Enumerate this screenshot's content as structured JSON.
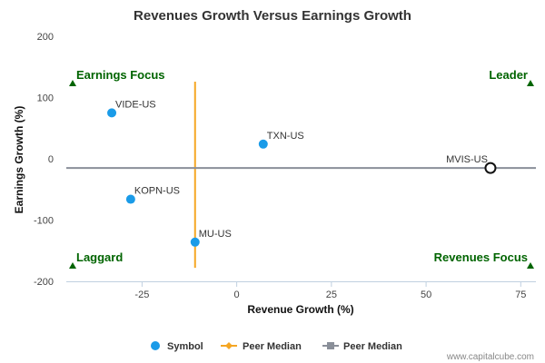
{
  "chart_data": {
    "type": "scatter",
    "title": "Revenues Growth Versus Earnings Growth",
    "xlabel": "Revenue Growth (%)",
    "ylabel": "Earnings Growth (%)",
    "xlim": [
      -45,
      79
    ],
    "ylim": [
      -200,
      200
    ],
    "x_ticks": [
      -25,
      0,
      25,
      50,
      75
    ],
    "y_ticks": [
      200,
      100,
      0,
      -100,
      -200
    ],
    "grid": false,
    "points": [
      {
        "label": "VIDE-US",
        "x": -33,
        "y": 75
      },
      {
        "label": "TXN-US",
        "x": 7,
        "y": 24
      },
      {
        "label": "KOPN-US",
        "x": -28,
        "y": -66
      },
      {
        "label": "MU-US",
        "x": -11,
        "y": -136
      },
      {
        "label": "MVIS-US",
        "x": 67,
        "y": -15,
        "highlight": true
      }
    ],
    "peer_median_x": -11,
    "peer_median_y": -15,
    "peer_median_x_range": [
      -178,
      126
    ],
    "peer_median_y_range": [
      -45,
      79
    ],
    "quadrants": {
      "top_left": "Earnings Focus",
      "top_right": "Leader",
      "bottom_left": "Laggard",
      "bottom_right": "Revenues Focus"
    },
    "legend": {
      "placement": "bottom",
      "items": [
        {
          "label": "Symbol",
          "color": "#1a9be8"
        },
        {
          "label": "Peer Median",
          "color": "#f5a623"
        },
        {
          "label": "Peer Median",
          "color": "#8a8f99"
        }
      ]
    },
    "credit": "www.capitalcube.com",
    "colors": {
      "point": "#1a9be8",
      "median_x": "#f5a623",
      "median_y": "#8a8f99",
      "quadrant": "#006400",
      "axis": "#c0d0e0"
    }
  }
}
